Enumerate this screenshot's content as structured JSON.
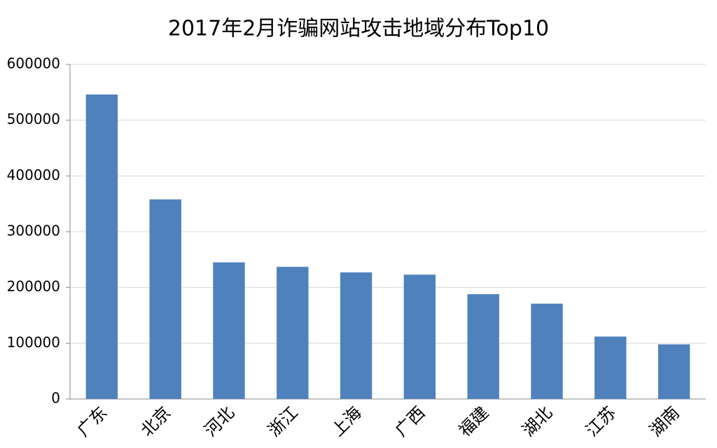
{
  "chart_data": {
    "type": "bar",
    "title": "2017年2月诈骗网站攻击地域分布Top10",
    "categories": [
      "广东",
      "北京",
      "河北",
      "浙江",
      "上海",
      "广西",
      "福建",
      "湖北",
      "江苏",
      "湖南"
    ],
    "values": [
      546000,
      358000,
      245000,
      237000,
      227000,
      223000,
      188000,
      171000,
      112000,
      98000
    ],
    "color": "#4f81bd",
    "ylim": [
      0,
      600000
    ],
    "yticks": [
      0,
      100000,
      200000,
      300000,
      400000,
      500000,
      600000
    ],
    "grid": true
  }
}
